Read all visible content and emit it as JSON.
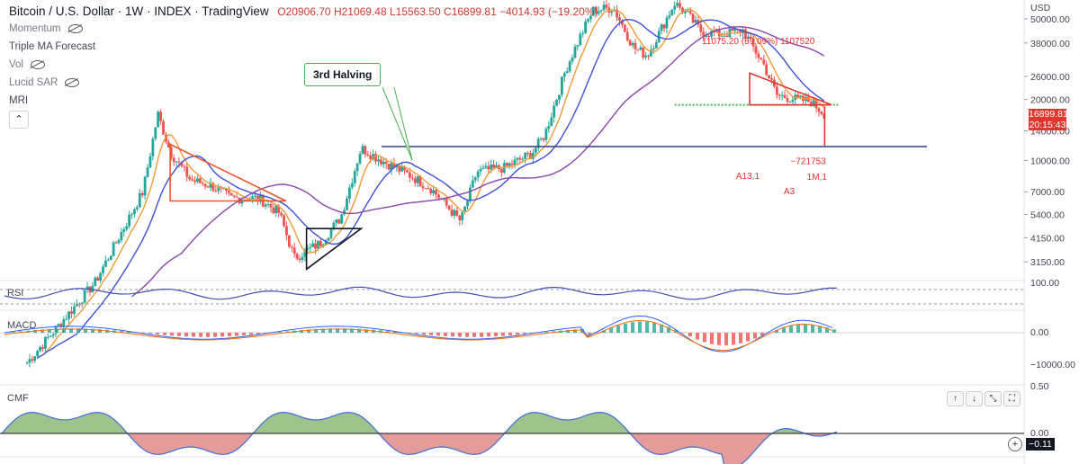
{
  "header": {
    "symbol": "Bitcoin / U.S. Dollar · 1W · INDEX · TradingView",
    "ohlc": "O20906.70  H21069.48  L15563.50  C16899.81  −4014.93 (−19.20%)"
  },
  "indicators": [
    "Momentum",
    "Triple MA Forecast",
    "Vol",
    "Lucid SAR",
    "MRI"
  ],
  "annotation": {
    "halving_label": "3rd Halving",
    "target_text": "11075.20 (59.09%) 1107520",
    "neg_text": "−721753",
    "m1": "1M,1",
    "a3": "A3",
    "a13": "A13,1"
  },
  "chart_data": [
    {
      "type": "line",
      "title": "Bitcoin / U.S. Dollar · 1W · INDEX",
      "ylabel": "USD",
      "log_scale": true,
      "ylim": [
        2600,
        62000
      ],
      "yticks": [
        {
          "value": 50000,
          "label": "50000.00"
        },
        {
          "value": 38000,
          "label": "38000.00"
        },
        {
          "value": 26000,
          "label": "26000.00"
        },
        {
          "value": 20000,
          "label": "20000.00"
        },
        {
          "value": 14000,
          "label": "14000.00"
        },
        {
          "value": 10000,
          "label": "10000.00"
        },
        {
          "value": 7000,
          "label": "7000.00"
        },
        {
          "value": 5400,
          "label": "5400.00"
        },
        {
          "value": 4150,
          "label": "4150.00"
        },
        {
          "value": 3150,
          "label": "3150.00"
        }
      ],
      "last_price": "16899.81",
      "countdown": "20:15:43",
      "x": [
        2017.0,
        2017.5,
        2017.85,
        2017.96,
        2018.05,
        2018.2,
        2018.35,
        2018.5,
        2018.7,
        2018.85,
        2018.96,
        2019.15,
        2019.3,
        2019.45,
        2019.6,
        2019.8,
        2019.96,
        2020.18,
        2020.3,
        2020.5,
        2020.7,
        2020.8,
        2020.95,
        2021.05,
        2021.15,
        2021.3,
        2021.45,
        2021.55,
        2021.75,
        2021.85,
        2021.95,
        2022.1,
        2022.25,
        2022.4,
        2022.5,
        2022.65,
        2022.75,
        2022.85
      ],
      "series": [
        {
          "name": "BTCUSD",
          "values": [
            1000,
            2500,
            7000,
            17000,
            11000,
            8000,
            7500,
            6500,
            6500,
            5500,
            3300,
            3900,
            5200,
            11500,
            10000,
            8500,
            7300,
            5000,
            8800,
            9200,
            10800,
            13500,
            28000,
            40000,
            55000,
            57000,
            36000,
            33000,
            60000,
            52000,
            43000,
            42000,
            44000,
            30000,
            21000,
            20000,
            19500,
            16900
          ]
        }
      ],
      "horizontal_levels": [
        11700,
        18800
      ]
    },
    {
      "type": "line",
      "title": "RSI",
      "ylim": [
        0,
        100
      ],
      "yticks": [
        {
          "value": 100,
          "label": "100.00"
        }
      ]
    },
    {
      "type": "bar",
      "title": "MACD",
      "ylim": [
        -12000,
        6000
      ],
      "yticks": [
        {
          "value": 0,
          "label": "0.00"
        },
        {
          "value": -10000,
          "label": "−10000.00"
        }
      ]
    },
    {
      "type": "area",
      "title": "CMF",
      "ylim": [
        -0.2,
        0.5
      ],
      "yticks": [
        {
          "value": 0.5,
          "label": "0.50"
        },
        {
          "value": 0.0,
          "label": "0.00"
        }
      ],
      "last_value": "−0.11"
    }
  ],
  "colors": {
    "candle_up": "#26a69a",
    "candle_down": "#ef5350",
    "ma_fast": "#f29a38",
    "ma_mid": "#3f51d6",
    "ma_slow": "#8e44ad",
    "level": "#2c3e82",
    "cmf_pos": "#8fb87a",
    "cmf_neg": "#e28a8a",
    "rsi": "#3f51b5",
    "price_tag": "#e0362e"
  }
}
